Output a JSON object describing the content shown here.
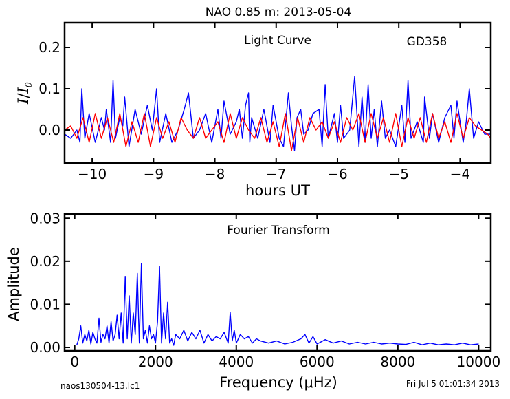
{
  "figure": {
    "title": "NAO 0.85 m:  2013-05-04",
    "footer_left": "naos130504-13.lc1",
    "footer_right": "Fri Jul  5 01:01:34 2013"
  },
  "chart_data": [
    {
      "type": "line",
      "panel": "light-curve",
      "annotation": "Light Curve",
      "object": "GD358",
      "xlabel": "hours UT",
      "ylabel": "I / I0",
      "xlim": [
        -10.45,
        -3.5
      ],
      "ylim": [
        -0.08,
        0.26
      ],
      "xticks": [
        -10,
        -9,
        -8,
        -7,
        -6,
        -5,
        -4
      ],
      "xtick_labels": [
        "−10",
        "−9",
        "−8",
        "−7",
        "−6",
        "−5",
        "−4"
      ],
      "yticks": [
        0.0,
        0.1,
        0.2
      ],
      "ytick_labels": [
        "0.0",
        "0.1",
        "0.2"
      ],
      "grid": false,
      "series": [
        {
          "color": "#0000ff",
          "x": [
            -10.45,
            -10.35,
            -10.25,
            -10.2,
            -10.17,
            -10.12,
            -10.05,
            -9.95,
            -9.85,
            -9.8,
            -9.77,
            -9.7,
            -9.66,
            -9.62,
            -9.55,
            -9.5,
            -9.47,
            -9.4,
            -9.3,
            -9.2,
            -9.1,
            -9.02,
            -8.95,
            -8.9,
            -8.8,
            -8.7,
            -8.6,
            -8.5,
            -8.43,
            -8.35,
            -8.25,
            -8.15,
            -8.05,
            -7.95,
            -7.9,
            -7.85,
            -7.75,
            -7.65,
            -7.6,
            -7.55,
            -7.5,
            -7.45,
            -7.43,
            -7.4,
            -7.3,
            -7.2,
            -7.1,
            -7.05,
            -6.95,
            -6.88,
            -6.8,
            -6.75,
            -6.7,
            -6.66,
            -6.6,
            -6.55,
            -6.48,
            -6.4,
            -6.3,
            -6.25,
            -6.2,
            -6.15,
            -6.05,
            -6.0,
            -5.95,
            -5.9,
            -5.8,
            -5.72,
            -5.65,
            -5.6,
            -5.55,
            -5.5,
            -5.45,
            -5.4,
            -5.35,
            -5.28,
            -5.22,
            -5.15,
            -5.05,
            -4.95,
            -4.9,
            -4.85,
            -4.8,
            -4.7,
            -4.6,
            -4.58,
            -4.5,
            -4.45,
            -4.35,
            -4.25,
            -4.15,
            -4.1,
            -4.05,
            -3.95,
            -3.9,
            -3.85,
            -3.78,
            -3.7,
            -3.6,
            -3.5
          ],
          "y": [
            -0.01,
            -0.02,
            0.0,
            -0.03,
            0.1,
            -0.02,
            0.04,
            -0.03,
            0.03,
            0.0,
            0.05,
            -0.03,
            0.12,
            -0.02,
            0.03,
            0.01,
            0.08,
            -0.04,
            0.05,
            -0.01,
            0.06,
            0.0,
            0.1,
            -0.03,
            0.04,
            -0.03,
            0.0,
            0.05,
            0.09,
            -0.02,
            0.0,
            0.04,
            -0.03,
            0.05,
            -0.02,
            0.07,
            -0.01,
            0.02,
            0.05,
            -0.02,
            0.06,
            0.09,
            -0.03,
            0.03,
            -0.02,
            0.05,
            -0.03,
            0.06,
            -0.02,
            -0.04,
            0.09,
            0.01,
            -0.05,
            0.03,
            0.05,
            -0.01,
            0.0,
            0.04,
            0.05,
            -0.04,
            0.11,
            -0.02,
            0.04,
            -0.03,
            0.06,
            -0.02,
            0.0,
            0.13,
            -0.04,
            0.08,
            -0.03,
            0.11,
            -0.02,
            0.05,
            -0.04,
            0.07,
            -0.02,
            0.0,
            -0.04,
            0.06,
            -0.03,
            0.12,
            -0.02,
            0.02,
            -0.03,
            0.08,
            -0.02,
            0.04,
            -0.03,
            0.03,
            0.06,
            -0.02,
            0.07,
            -0.03,
            0.02,
            0.1,
            -0.02,
            0.02,
            -0.01,
            -0.01
          ]
        },
        {
          "color": "#ff0000",
          "x": [
            -10.45,
            -10.35,
            -10.25,
            -10.15,
            -10.05,
            -9.95,
            -9.85,
            -9.75,
            -9.65,
            -9.55,
            -9.45,
            -9.35,
            -9.25,
            -9.15,
            -9.05,
            -8.95,
            -8.85,
            -8.75,
            -8.65,
            -8.55,
            -8.45,
            -8.35,
            -8.25,
            -8.15,
            -8.05,
            -7.95,
            -7.85,
            -7.75,
            -7.65,
            -7.55,
            -7.45,
            -7.35,
            -7.25,
            -7.15,
            -7.05,
            -6.95,
            -6.85,
            -6.75,
            -6.65,
            -6.55,
            -6.45,
            -6.35,
            -6.25,
            -6.15,
            -6.05,
            -5.95,
            -5.85,
            -5.75,
            -5.65,
            -5.55,
            -5.45,
            -5.35,
            -5.25,
            -5.15,
            -5.05,
            -4.95,
            -4.85,
            -4.75,
            -4.65,
            -4.55,
            -4.45,
            -4.35,
            -4.25,
            -4.15,
            -4.05,
            -3.95,
            -3.85,
            -3.75,
            -3.65,
            -3.55,
            -3.5
          ],
          "y": [
            0.0,
            0.01,
            -0.02,
            0.03,
            -0.03,
            0.04,
            -0.02,
            0.03,
            -0.03,
            0.04,
            -0.04,
            0.02,
            -0.03,
            0.04,
            -0.04,
            0.03,
            -0.02,
            0.02,
            -0.03,
            0.03,
            0.0,
            -0.02,
            0.03,
            -0.02,
            0.0,
            0.02,
            -0.03,
            0.04,
            -0.02,
            0.03,
            0.0,
            -0.02,
            0.03,
            -0.03,
            0.02,
            -0.04,
            0.04,
            -0.05,
            0.03,
            -0.03,
            0.03,
            0.0,
            0.02,
            -0.02,
            0.02,
            -0.03,
            0.03,
            0.0,
            0.04,
            -0.03,
            0.04,
            -0.02,
            0.03,
            -0.03,
            0.04,
            -0.04,
            0.03,
            -0.02,
            0.03,
            -0.03,
            0.04,
            -0.02,
            0.02,
            -0.03,
            0.04,
            -0.02,
            0.03,
            0.01,
            0.0,
            -0.01,
            -0.02
          ]
        }
      ]
    },
    {
      "type": "line",
      "panel": "fourier-transform",
      "annotation": "Fourier Transform",
      "xlabel": "Frequency (μHz)",
      "ylabel": "Amplitude",
      "xlim": [
        -250,
        10300
      ],
      "ylim": [
        -0.0008,
        0.031
      ],
      "xticks": [
        0,
        2000,
        4000,
        6000,
        8000,
        10000
      ],
      "xtick_labels": [
        "0",
        "2000",
        "4000",
        "6000",
        "8000",
        "10000"
      ],
      "yticks": [
        0.0,
        0.01,
        0.02,
        0.03
      ],
      "ytick_labels": [
        "0.00",
        "0.01",
        "0.02",
        "0.03"
      ],
      "grid": false,
      "series": [
        {
          "color": "#0000ff",
          "x": [
            50,
            100,
            150,
            200,
            250,
            300,
            350,
            400,
            450,
            500,
            550,
            600,
            650,
            700,
            750,
            800,
            850,
            900,
            950,
            1000,
            1050,
            1100,
            1150,
            1200,
            1250,
            1300,
            1350,
            1400,
            1450,
            1500,
            1550,
            1600,
            1650,
            1700,
            1750,
            1800,
            1850,
            1900,
            1950,
            2000,
            2050,
            2100,
            2150,
            2200,
            2250,
            2300,
            2350,
            2400,
            2450,
            2500,
            2600,
            2700,
            2800,
            2900,
            3000,
            3100,
            3200,
            3300,
            3400,
            3500,
            3600,
            3700,
            3800,
            3850,
            3900,
            3950,
            4000,
            4100,
            4200,
            4300,
            4400,
            4500,
            4600,
            4800,
            5000,
            5200,
            5400,
            5600,
            5700,
            5800,
            5900,
            6000,
            6200,
            6400,
            6600,
            6800,
            7000,
            7200,
            7400,
            7600,
            7800,
            8000,
            8200,
            8400,
            8600,
            8800,
            9000,
            9200,
            9400,
            9600,
            9800,
            10000
          ],
          "y": [
            0.0005,
            0.002,
            0.005,
            0.001,
            0.003,
            0.0015,
            0.004,
            0.0008,
            0.0035,
            0.002,
            0.001,
            0.0068,
            0.0012,
            0.003,
            0.002,
            0.005,
            0.001,
            0.006,
            0.0015,
            0.003,
            0.0075,
            0.002,
            0.008,
            0.001,
            0.0165,
            0.002,
            0.012,
            0.001,
            0.008,
            0.003,
            0.0172,
            0.001,
            0.0195,
            0.002,
            0.004,
            0.001,
            0.005,
            0.002,
            0.003,
            0.001,
            0.006,
            0.0188,
            0.001,
            0.008,
            0.002,
            0.0105,
            0.001,
            0.002,
            0.0005,
            0.003,
            0.002,
            0.004,
            0.0015,
            0.0035,
            0.002,
            0.004,
            0.001,
            0.003,
            0.0015,
            0.0025,
            0.002,
            0.0035,
            0.001,
            0.0082,
            0.0015,
            0.004,
            0.001,
            0.003,
            0.002,
            0.0025,
            0.001,
            0.002,
            0.0015,
            0.001,
            0.0015,
            0.0008,
            0.0012,
            0.002,
            0.003,
            0.001,
            0.0025,
            0.0008,
            0.0018,
            0.001,
            0.0015,
            0.0008,
            0.0012,
            0.0008,
            0.0012,
            0.0008,
            0.001,
            0.0008,
            0.0007,
            0.0012,
            0.0006,
            0.001,
            0.0006,
            0.0008,
            0.0006,
            0.001,
            0.0006,
            0.0008
          ]
        }
      ]
    }
  ]
}
